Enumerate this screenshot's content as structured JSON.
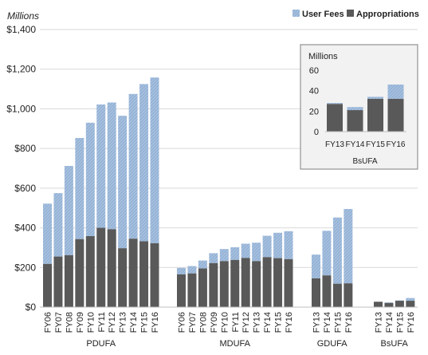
{
  "colors": {
    "appropriations": "#595959",
    "user_fees": "#95b3d7",
    "user_fees_hatch": "#b8cce4",
    "grid": "#d9d9d9",
    "axis": "#bfbfbf",
    "inset_border": "#7f7f7f",
    "inset_fill": "#f2f2f2"
  },
  "chart_data": [
    {
      "type": "bar",
      "stacked": true,
      "ylabel": "Millions",
      "ylim": [
        0,
        1400
      ],
      "yticks": [
        0,
        200,
        400,
        600,
        800,
        1000,
        1200,
        1400
      ],
      "ytick_labels": [
        "$0",
        "$200",
        "$400",
        "$600",
        "$800",
        "$1,000",
        "$1,200",
        "$1,400"
      ],
      "grid": true,
      "legend": {
        "position": "top-right",
        "entries": [
          "User Fees",
          "Appropriations"
        ]
      },
      "groups": [
        {
          "name": "PDUFA",
          "categories": [
            "FY06",
            "FY07",
            "FY08",
            "FY09",
            "FY10",
            "FY11",
            "FY12",
            "FY13",
            "FY14",
            "FY15",
            "FY16"
          ],
          "appropriations": [
            218,
            255,
            262,
            343,
            358,
            400,
            393,
            297,
            345,
            332,
            322
          ],
          "totals": [
            522,
            575,
            712,
            853,
            930,
            1022,
            1032,
            965,
            1075,
            1125,
            1158
          ]
        },
        {
          "name": "MDUFA",
          "categories": [
            "FY06",
            "FY07",
            "FY08",
            "FY09",
            "FY10",
            "FY11",
            "FY12",
            "FY13",
            "FY14",
            "FY15",
            "FY16"
          ],
          "appropriations": [
            165,
            170,
            195,
            222,
            232,
            238,
            248,
            232,
            252,
            247,
            242
          ],
          "totals": [
            198,
            207,
            235,
            272,
            293,
            302,
            320,
            325,
            360,
            375,
            383
          ]
        },
        {
          "name": "GDUFA",
          "categories": [
            "FY13",
            "FY14",
            "FY15",
            "FY16"
          ],
          "appropriations": [
            145,
            160,
            118,
            120
          ],
          "totals": [
            265,
            385,
            452,
            495
          ]
        },
        {
          "name": "BsUFA",
          "categories": [
            "FY13",
            "FY14",
            "FY15",
            "FY16"
          ],
          "appropriations": [
            27,
            21,
            32,
            32
          ],
          "totals": [
            28,
            24,
            34,
            46
          ]
        }
      ],
      "series": [
        {
          "name": "User Fees"
        },
        {
          "name": "Appropriations"
        }
      ]
    },
    {
      "type": "bar",
      "stacked": true,
      "inset": true,
      "title": "Millions",
      "xlabel": "BsUFA",
      "ylim": [
        0,
        60
      ],
      "yticks": [
        0,
        20,
        40,
        60
      ],
      "ytick_labels": [
        "0",
        "20",
        "40",
        "60"
      ],
      "categories": [
        "FY13",
        "FY14",
        "FY15",
        "FY16"
      ],
      "appropriations": [
        27,
        21,
        32,
        32
      ],
      "totals": [
        28,
        24,
        34,
        46
      ]
    }
  ]
}
